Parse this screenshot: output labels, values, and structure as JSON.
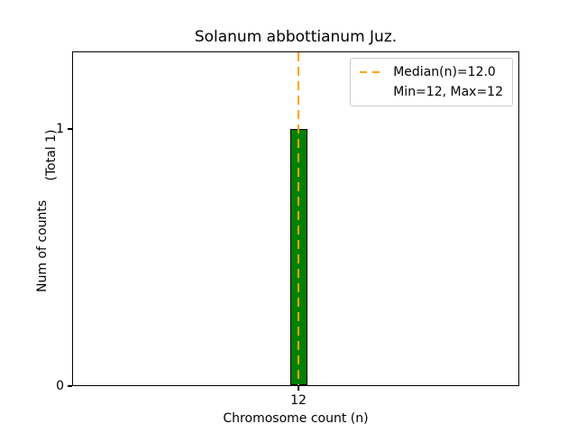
{
  "chart_data": {
    "type": "bar",
    "title": "Solanum abbottianum Juz.",
    "xlabel": "Chromosome count (n)",
    "ylabel": "Num of counts",
    "ylabel_secondary": "(Total 1)",
    "categories": [
      "12"
    ],
    "values": [
      1
    ],
    "ylim": [
      0,
      1.3
    ],
    "y_ticks": [
      {
        "label": "1",
        "value": 1
      },
      {
        "label": "0",
        "value": 0
      }
    ],
    "x_ticks": [
      {
        "label": "12"
      }
    ],
    "bar_color": "#008000",
    "bar_edge_color": "#000000",
    "median_line": {
      "value": 12,
      "color": "#FFA500",
      "style": "dashed"
    },
    "legend": {
      "position": "upper-right",
      "entries": [
        {
          "handle": "dashed-line",
          "label": "Median(n)=12.0"
        },
        {
          "handle": "none",
          "label": "Min=12, Max=12"
        }
      ]
    },
    "grid": false
  }
}
